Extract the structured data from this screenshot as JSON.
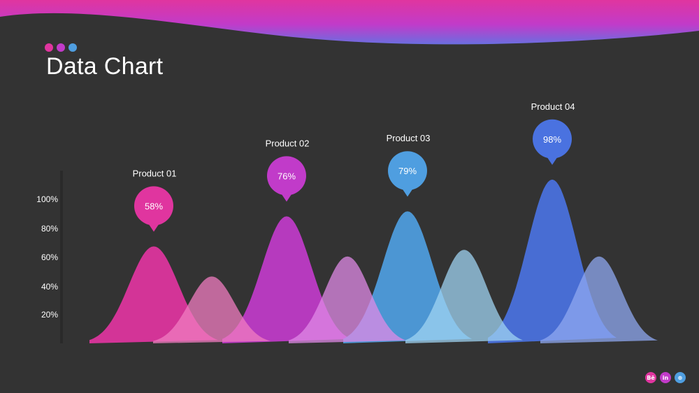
{
  "slide": {
    "title": "Data Chart",
    "dot_colors": [
      "#e0359f",
      "#c13bc9",
      "#4f9ee0"
    ]
  },
  "chart_data": {
    "type": "area",
    "title": "",
    "xlabel": "",
    "ylabel": "",
    "y_tick_labels": [
      "100%",
      "80%",
      "60%",
      "40%",
      "20%"
    ],
    "ylim": [
      0,
      100
    ],
    "categories": [
      "Product 01",
      "Product 02",
      "Product 03",
      "Product 04"
    ],
    "values": [
      58,
      76,
      79,
      98
    ],
    "value_labels": [
      "58%",
      "76%",
      "79%",
      "98%"
    ],
    "colors": [
      "#e0359f",
      "#c13bc9",
      "#4f9ee0",
      "#4a72e0"
    ],
    "secondary_peaks": [
      40,
      52,
      56,
      52
    ],
    "secondary_colors": [
      "#f07cc0",
      "#df8ae6",
      "#9fd3f2",
      "#8fa8f0"
    ],
    "grid": false,
    "legend": "none"
  },
  "footer": {
    "socials": [
      {
        "icon": "behance-icon",
        "text": "Bē",
        "color": "#e0359f"
      },
      {
        "icon": "linkedin-icon",
        "text": "in",
        "color": "#c13bc9"
      },
      {
        "icon": "dribbble-icon",
        "text": "⊛",
        "color": "#4f9ee0"
      }
    ]
  }
}
